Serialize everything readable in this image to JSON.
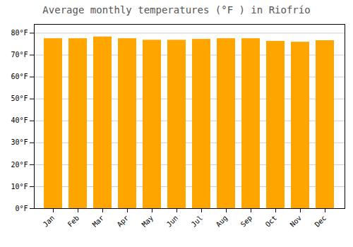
{
  "chart_data": {
    "type": "bar",
    "title": "Average monthly temperatures (°F ) in Riofrío",
    "categories": [
      "Jan",
      "Feb",
      "Mar",
      "Apr",
      "May",
      "Jun",
      "Jul",
      "Aug",
      "Sep",
      "Oct",
      "Nov",
      "Dec"
    ],
    "values": [
      77.5,
      77.5,
      78.3,
      77.5,
      76.8,
      76.8,
      77.2,
      77.5,
      77.5,
      76.3,
      75.9,
      76.6
    ],
    "color": "#FFA500",
    "ylim": [
      0,
      84
    ],
    "yticks": [
      {
        "value": 0,
        "label": "0°F"
      },
      {
        "value": 10,
        "label": "10°F"
      },
      {
        "value": 20,
        "label": "20°F"
      },
      {
        "value": 30,
        "label": "30°F"
      },
      {
        "value": 40,
        "label": "40°F"
      },
      {
        "value": 50,
        "label": "50°F"
      },
      {
        "value": 60,
        "label": "60°F"
      },
      {
        "value": 70,
        "label": "70°F"
      },
      {
        "value": 80,
        "label": "80°F"
      }
    ],
    "grid": true
  }
}
